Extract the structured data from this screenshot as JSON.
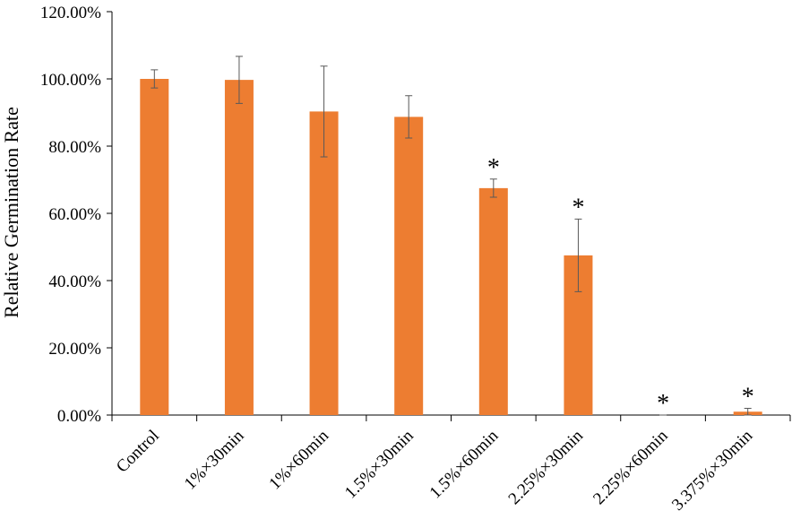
{
  "chart_data": {
    "type": "bar",
    "y_label": "Relative Germination Rate",
    "categories": [
      "Control",
      "1%×30min",
      "1%×60min",
      "1.5%×30min",
      "1.5%×60min",
      "2.25%×30min",
      "2.25%×60min",
      "3.375%×30min"
    ],
    "values": [
      100,
      99.7,
      90.3,
      88.7,
      67.5,
      47.5,
      0,
      1
    ],
    "errors": [
      2.7,
      7,
      13.5,
      6.3,
      2.7,
      10.8,
      0,
      1
    ],
    "significance": [
      null,
      null,
      null,
      null,
      "*",
      "*",
      "*",
      "*"
    ],
    "color": "#ED7D31",
    "error_color": "#595959",
    "ylim": [
      0,
      120
    ],
    "yticks": [
      {
        "value": 0,
        "label": "0.00%"
      },
      {
        "value": 20,
        "label": "20.00%"
      },
      {
        "value": 40,
        "label": "40.00%"
      },
      {
        "value": 60,
        "label": "60.00%"
      },
      {
        "value": 80,
        "label": "80.00%"
      },
      {
        "value": 100,
        "label": "100.00%"
      },
      {
        "value": 120,
        "label": "120.00%"
      }
    ],
    "grid": false
  }
}
